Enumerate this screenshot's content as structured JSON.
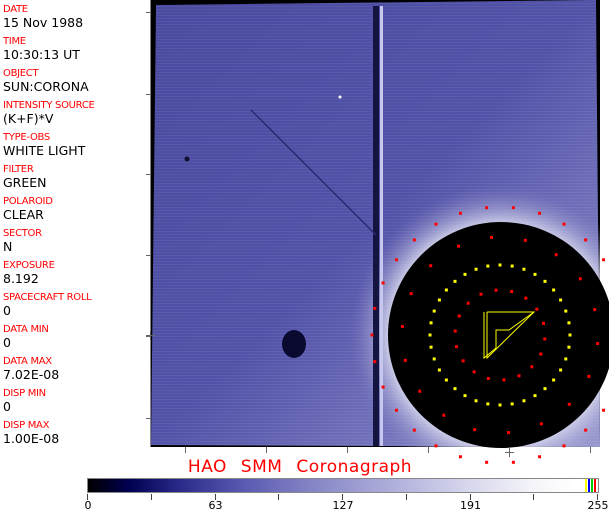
{
  "header_fields": [
    {
      "label": "DATE",
      "value": "15 Nov 1988"
    },
    {
      "label": "TIME",
      "value": "10:30:13 UT"
    },
    {
      "label": "OBJECT",
      "value": "SUN:CORONA"
    },
    {
      "label": "INTENSITY SOURCE",
      "value": "(K+F)*V"
    },
    {
      "label": "TYPE-OBS",
      "value": "WHITE LIGHT"
    },
    {
      "label": "FILTER",
      "value": "GREEN"
    },
    {
      "label": "POLAROID",
      "value": "CLEAR"
    },
    {
      "label": "SECTOR",
      "value": "N"
    },
    {
      "label": "EXPOSURE",
      "value": "8.192"
    },
    {
      "label": "SPACECRAFT ROLL",
      "value": "0"
    },
    {
      "label": "DATA MIN",
      "value": "0"
    },
    {
      "label": "DATA MAX",
      "value": "7.02E-08"
    },
    {
      "label": "DISP MIN",
      "value": "0"
    },
    {
      "label": "DISP MAX",
      "value": "1.00E-08"
    }
  ],
  "title": "HAO  SMM  Coronagraph",
  "colorbar": {
    "tick_labels": [
      "0",
      "63",
      "127",
      "191",
      "255"
    ],
    "colors": {
      "low": "#000000",
      "mid": "#8888c8",
      "high": "#ffffff",
      "overlay": [
        "#ffff00",
        "#0000ff",
        "#00c000",
        "#ff0000"
      ]
    }
  },
  "overlay_colors": {
    "grid_red": "#ff0000",
    "grid_yellow": "#ffff00"
  }
}
